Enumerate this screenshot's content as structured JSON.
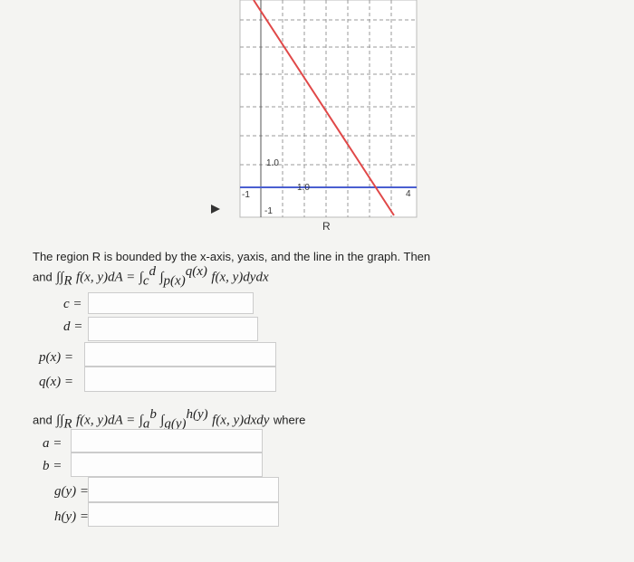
{
  "graph": {
    "labels": [
      "1.0",
      "1.0",
      "-1",
      "-1",
      "4"
    ],
    "caption": "R"
  },
  "problem": {
    "text": "The region R is bounded by the x-axis, yaxis, and the line in the graph. Then"
  },
  "formula1": {
    "prefix": "and",
    "integral": "∫∫",
    "region": "R",
    "integrand": "f(x, y)dA =",
    "outer": "∫",
    "outer_lower": "c",
    "outer_upper": "d",
    "inner": "∫",
    "inner_lower": "p(x)",
    "inner_upper": "q(x)",
    "tail": "f(x, y)dydx"
  },
  "fields1": [
    "c =",
    "d =",
    "p(x) =",
    "q(x) ="
  ],
  "formula2": {
    "prefix": "and",
    "integral": "∫∫",
    "region": "R",
    "integrand": "f(x, y)dA =",
    "outer": "∫",
    "outer_lower": "a",
    "outer_upper": "b",
    "inner": "∫",
    "inner_lower": "g(y)",
    "inner_upper": "h(y)",
    "tail": "f(x, y)dxdy",
    "suffix": "where"
  },
  "fields2": [
    "a =",
    "b =",
    "g(y) =",
    "h(y) ="
  ]
}
